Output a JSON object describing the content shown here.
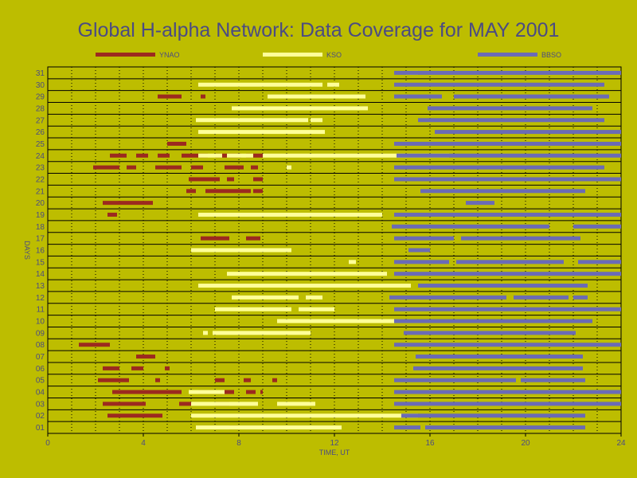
{
  "chart_data": {
    "type": "gantt",
    "title": "Global H-alpha Network: Data Coverage for MAY 2001",
    "xlabel": "TIME, UT",
    "ylabel": "DAYS",
    "xlim": [
      0,
      24
    ],
    "xticks": [
      0,
      4,
      8,
      12,
      16,
      20,
      24
    ],
    "days": [
      "01",
      "02",
      "03",
      "04",
      "05",
      "06",
      "07",
      "08",
      "09",
      "10",
      "11",
      "12",
      "13",
      "14",
      "15",
      "16",
      "17",
      "18",
      "19",
      "20",
      "21",
      "22",
      "23",
      "24",
      "25",
      "26",
      "27",
      "28",
      "29",
      "30",
      "31"
    ],
    "grid": true,
    "colors": {
      "YNAO": "#9c2a1f",
      "KSO": "#ffff99",
      "BBSO": "#6b6bb5",
      "axes": "#000000",
      "text": "#4b4b83",
      "background": "#bdbd00"
    },
    "series": [
      {
        "name": "YNAO",
        "segments": [
          {
            "day": 1,
            "start": 7.6,
            "end": 8.0
          },
          {
            "day": 2,
            "start": 2.5,
            "end": 4.8
          },
          {
            "day": 3,
            "start": 2.3,
            "end": 4.1
          },
          {
            "day": 3,
            "start": 5.5,
            "end": 6.0
          },
          {
            "day": 3,
            "start": 7.0,
            "end": 7.6
          },
          {
            "day": 4,
            "start": 2.7,
            "end": 5.6
          },
          {
            "day": 4,
            "start": 6.3,
            "end": 7.8
          },
          {
            "day": 4,
            "start": 8.3,
            "end": 8.7
          },
          {
            "day": 4,
            "start": 8.9,
            "end": 9.0
          },
          {
            "day": 5,
            "start": 2.1,
            "end": 3.4
          },
          {
            "day": 5,
            "start": 4.5,
            "end": 4.7
          },
          {
            "day": 5,
            "start": 7.0,
            "end": 7.4
          },
          {
            "day": 5,
            "start": 8.2,
            "end": 8.5
          },
          {
            "day": 5,
            "start": 9.4,
            "end": 9.6
          },
          {
            "day": 6,
            "start": 2.3,
            "end": 3.0
          },
          {
            "day": 6,
            "start": 3.5,
            "end": 4.0
          },
          {
            "day": 6,
            "start": 4.9,
            "end": 5.1
          },
          {
            "day": 7,
            "start": 3.7,
            "end": 4.5
          },
          {
            "day": 8,
            "start": 1.3,
            "end": 2.6
          },
          {
            "day": 17,
            "start": 6.4,
            "end": 7.6
          },
          {
            "day": 17,
            "start": 8.3,
            "end": 8.9
          },
          {
            "day": 19,
            "start": 2.5,
            "end": 2.9
          },
          {
            "day": 20,
            "start": 2.3,
            "end": 4.4
          },
          {
            "day": 21,
            "start": 5.8,
            "end": 6.2
          },
          {
            "day": 21,
            "start": 6.6,
            "end": 8.5
          },
          {
            "day": 21,
            "start": 8.6,
            "end": 9.0
          },
          {
            "day": 22,
            "start": 5.9,
            "end": 7.2
          },
          {
            "day": 22,
            "start": 7.5,
            "end": 7.8
          },
          {
            "day": 22,
            "start": 8.6,
            "end": 9.0
          },
          {
            "day": 23,
            "start": 1.9,
            "end": 3.0
          },
          {
            "day": 23,
            "start": 3.3,
            "end": 3.7
          },
          {
            "day": 23,
            "start": 4.5,
            "end": 5.6
          },
          {
            "day": 23,
            "start": 6.0,
            "end": 6.5
          },
          {
            "day": 23,
            "start": 7.4,
            "end": 8.2
          },
          {
            "day": 23,
            "start": 8.5,
            "end": 8.8
          },
          {
            "day": 24,
            "start": 2.6,
            "end": 3.3
          },
          {
            "day": 24,
            "start": 3.7,
            "end": 4.2
          },
          {
            "day": 24,
            "start": 4.6,
            "end": 5.1
          },
          {
            "day": 24,
            "start": 5.6,
            "end": 6.7
          },
          {
            "day": 24,
            "start": 7.0,
            "end": 8.1
          },
          {
            "day": 24,
            "start": 8.3,
            "end": 9.0
          },
          {
            "day": 25,
            "start": 5.0,
            "end": 5.8
          },
          {
            "day": 29,
            "start": 4.6,
            "end": 5.6
          },
          {
            "day": 29,
            "start": 6.4,
            "end": 6.6
          }
        ]
      },
      {
        "name": "KSO",
        "segments": [
          {
            "day": 1,
            "start": 6.2,
            "end": 12.3
          },
          {
            "day": 2,
            "start": 6.0,
            "end": 15.5
          },
          {
            "day": 3,
            "start": 6.0,
            "end": 8.8
          },
          {
            "day": 3,
            "start": 9.6,
            "end": 11.2
          },
          {
            "day": 4,
            "start": 5.9,
            "end": 7.4
          },
          {
            "day": 9,
            "start": 6.5,
            "end": 6.7
          },
          {
            "day": 9,
            "start": 6.9,
            "end": 11.0
          },
          {
            "day": 10,
            "start": 9.6,
            "end": 15.6
          },
          {
            "day": 11,
            "start": 7.0,
            "end": 10.2
          },
          {
            "day": 11,
            "start": 10.5,
            "end": 12.0
          },
          {
            "day": 12,
            "start": 7.7,
            "end": 10.5
          },
          {
            "day": 12,
            "start": 10.8,
            "end": 11.5
          },
          {
            "day": 13,
            "start": 6.3,
            "end": 15.2
          },
          {
            "day": 14,
            "start": 7.5,
            "end": 14.2
          },
          {
            "day": 15,
            "start": 12.6,
            "end": 12.9
          },
          {
            "day": 16,
            "start": 6.0,
            "end": 10.2
          },
          {
            "day": 19,
            "start": 6.3,
            "end": 14.0
          },
          {
            "day": 23,
            "start": 10.0,
            "end": 10.2
          },
          {
            "day": 24,
            "start": 6.3,
            "end": 7.3
          },
          {
            "day": 24,
            "start": 7.5,
            "end": 8.6
          },
          {
            "day": 24,
            "start": 9.0,
            "end": 16.8
          },
          {
            "day": 26,
            "start": 6.3,
            "end": 11.6
          },
          {
            "day": 27,
            "start": 6.2,
            "end": 10.9
          },
          {
            "day": 27,
            "start": 11.0,
            "end": 11.5
          },
          {
            "day": 28,
            "start": 7.7,
            "end": 13.4
          },
          {
            "day": 29,
            "start": 9.2,
            "end": 13.3
          },
          {
            "day": 30,
            "start": 6.3,
            "end": 11.5
          },
          {
            "day": 30,
            "start": 11.7,
            "end": 12.2
          },
          {
            "day": 31,
            "start": 15.0,
            "end": 15.5
          }
        ]
      },
      {
        "name": "BBSO",
        "segments": [
          {
            "day": 1,
            "start": 14.5,
            "end": 15.6
          },
          {
            "day": 1,
            "start": 15.8,
            "end": 22.5
          },
          {
            "day": 2,
            "start": 14.8,
            "end": 22.5
          },
          {
            "day": 3,
            "start": 14.5,
            "end": 24.0
          },
          {
            "day": 4,
            "start": 14.5,
            "end": 24.0
          },
          {
            "day": 5,
            "start": 14.5,
            "end": 19.6
          },
          {
            "day": 5,
            "start": 19.8,
            "end": 22.5
          },
          {
            "day": 6,
            "start": 15.3,
            "end": 22.4
          },
          {
            "day": 7,
            "start": 15.4,
            "end": 22.4
          },
          {
            "day": 8,
            "start": 14.5,
            "end": 24.0
          },
          {
            "day": 9,
            "start": 14.9,
            "end": 22.1
          },
          {
            "day": 10,
            "start": 14.5,
            "end": 22.8
          },
          {
            "day": 11,
            "start": 14.5,
            "end": 24.0
          },
          {
            "day": 12,
            "start": 14.3,
            "end": 19.2
          },
          {
            "day": 12,
            "start": 19.5,
            "end": 21.8
          },
          {
            "day": 12,
            "start": 22.0,
            "end": 22.6
          },
          {
            "day": 13,
            "start": 15.5,
            "end": 22.6
          },
          {
            "day": 14,
            "start": 14.5,
            "end": 24.0
          },
          {
            "day": 15,
            "start": 14.5,
            "end": 16.8
          },
          {
            "day": 15,
            "start": 17.1,
            "end": 21.6
          },
          {
            "day": 15,
            "start": 22.2,
            "end": 24.0
          },
          {
            "day": 16,
            "start": 15.1,
            "end": 16.0
          },
          {
            "day": 17,
            "start": 14.5,
            "end": 17.0
          },
          {
            "day": 17,
            "start": 17.3,
            "end": 22.3
          },
          {
            "day": 18,
            "start": 14.4,
            "end": 21.0
          },
          {
            "day": 18,
            "start": 22.0,
            "end": 24.0
          },
          {
            "day": 19,
            "start": 14.5,
            "end": 24.0
          },
          {
            "day": 20,
            "start": 17.5,
            "end": 18.7
          },
          {
            "day": 21,
            "start": 15.6,
            "end": 22.5
          },
          {
            "day": 22,
            "start": 14.5,
            "end": 24.0
          },
          {
            "day": 23,
            "start": 14.5,
            "end": 23.3
          },
          {
            "day": 24,
            "start": 14.6,
            "end": 24.0
          },
          {
            "day": 25,
            "start": 14.5,
            "end": 24.0
          },
          {
            "day": 26,
            "start": 16.2,
            "end": 24.0
          },
          {
            "day": 27,
            "start": 15.5,
            "end": 23.3
          },
          {
            "day": 28,
            "start": 15.9,
            "end": 22.8
          },
          {
            "day": 29,
            "start": 14.5,
            "end": 16.5
          },
          {
            "day": 29,
            "start": 17.0,
            "end": 23.5
          },
          {
            "day": 30,
            "start": 14.5,
            "end": 23.3
          },
          {
            "day": 31,
            "start": 14.5,
            "end": 24.0
          }
        ]
      }
    ]
  }
}
